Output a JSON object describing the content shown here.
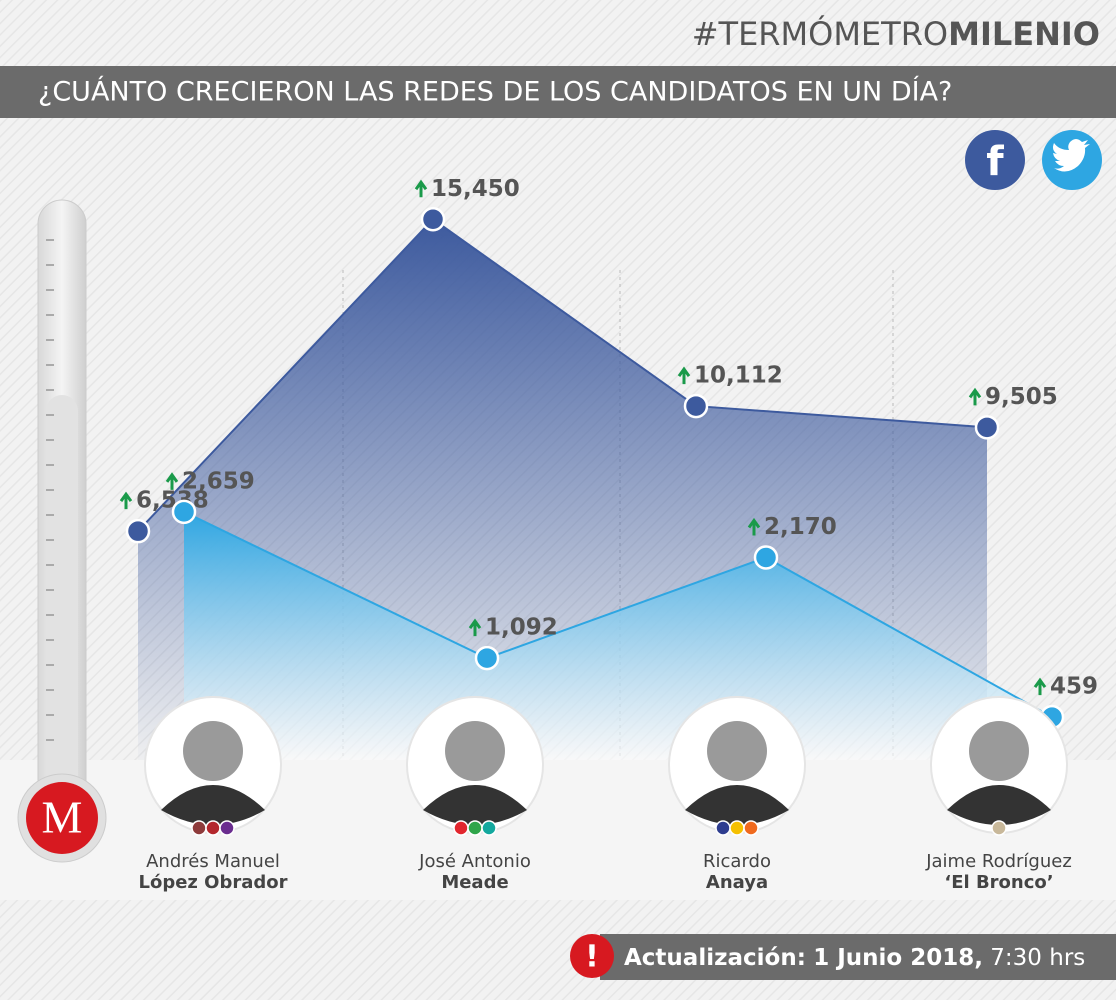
{
  "chart_data": {
    "type": "area",
    "brand": {
      "prefix": "#TERMÓMETRO",
      "bold": "MILENIO"
    },
    "title": "¿CUÁNTO CRECIERON LAS REDES DE LOS CANDIDATOS EN UN DÍA?",
    "categories": [
      {
        "first": "Andrés Manuel",
        "last": "López Obrador"
      },
      {
        "first": "José Antonio",
        "last": "Meade"
      },
      {
        "first": "Ricardo",
        "last": "Anaya"
      },
      {
        "first": "Jaime Rodríguez",
        "last": "‘El Bronco’"
      }
    ],
    "series": [
      {
        "color": "#3d5a9e",
        "values": [
          6538,
          15450,
          10112,
          9505
        ],
        "value_labels": [
          "6,538",
          "15,450",
          "10,112",
          "9,505"
        ]
      },
      {
        "color": "#2ea6e2",
        "axis": "y2",
        "values": [
          2659,
          1092,
          2170,
          459
        ],
        "value_labels": [
          "2,659",
          "1,092",
          "2,170",
          "459"
        ]
      }
    ],
    "ylim": [
      0,
      16000
    ],
    "y2lim": [
      0,
      3000
    ],
    "footer": {
      "label": "Actualización:",
      "date": "1 Junio 2018,",
      "time": "7:30 hrs"
    }
  }
}
